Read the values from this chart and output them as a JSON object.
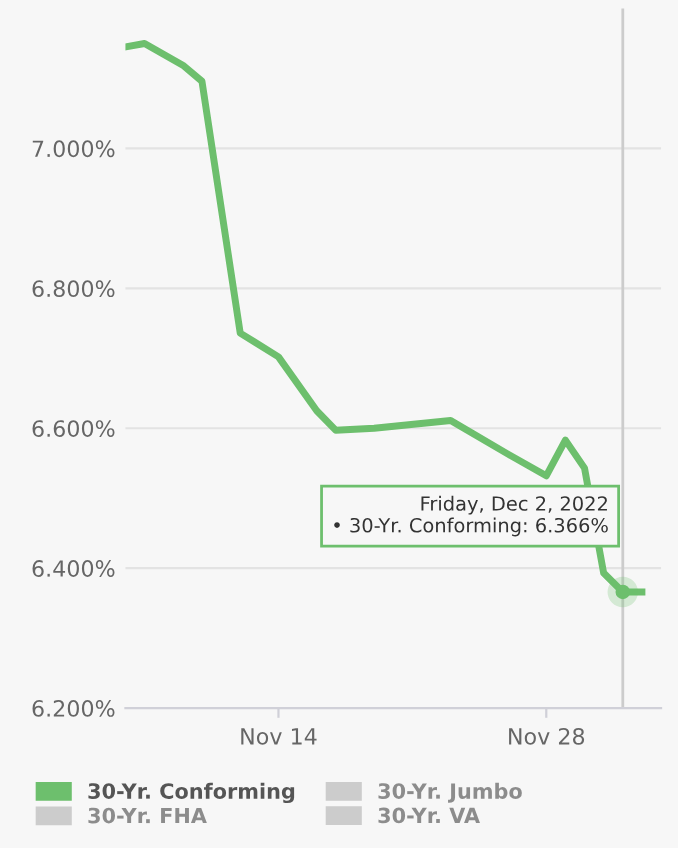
{
  "chart_data": {
    "type": "line",
    "x": [
      "2022-11-06",
      "2022-11-07",
      "2022-11-09",
      "2022-11-10",
      "2022-11-12",
      "2022-11-14",
      "2022-11-16",
      "2022-11-17",
      "2022-11-19",
      "2022-11-23",
      "2022-11-26",
      "2022-11-28",
      "2022-11-29",
      "2022-11-30",
      "2022-12-01",
      "2022-12-02",
      "2022-12-03"
    ],
    "series": [
      {
        "name": "30-Yr. Conforming",
        "color": "#6dbf6d",
        "values": [
          7.145,
          7.15,
          7.119,
          7.096,
          6.736,
          6.702,
          6.625,
          6.597,
          6.6,
          6.611,
          6.563,
          6.532,
          6.583,
          6.543,
          6.393,
          6.366,
          6.366
        ]
      },
      {
        "name": "30-Yr. Jumbo",
        "color": "#cccccc",
        "values": [
          null,
          null,
          null,
          null,
          null,
          null,
          null,
          null,
          null,
          null,
          null,
          null,
          null,
          null,
          null,
          null,
          null
        ]
      },
      {
        "name": "30-Yr. FHA",
        "color": "#cccccc",
        "values": [
          null,
          null,
          null,
          null,
          null,
          null,
          null,
          null,
          null,
          null,
          null,
          null,
          null,
          null,
          null,
          null,
          null
        ]
      },
      {
        "name": "30-Yr. VA",
        "color": "#cccccc",
        "values": [
          null,
          null,
          null,
          null,
          null,
          null,
          null,
          null,
          null,
          null,
          null,
          null,
          null,
          null,
          null,
          null,
          null
        ]
      }
    ],
    "xlim": [
      "2022-11-06",
      "2022-12-04"
    ],
    "xticks": [
      {
        "value": "2022-11-14",
        "label": "Nov 14"
      },
      {
        "value": "2022-11-28",
        "label": "Nov 28"
      }
    ],
    "ylim": [
      6.2,
      7.2
    ],
    "yticks": [
      {
        "value": 6.2,
        "label": "6.200%"
      },
      {
        "value": 6.4,
        "label": "6.400%"
      },
      {
        "value": 6.6,
        "label": "6.600%"
      },
      {
        "value": 6.8,
        "label": "6.800%"
      },
      {
        "value": 7.0,
        "label": "7.000%"
      }
    ],
    "grid": "y",
    "legend": "bottom",
    "marker": "none",
    "line_style": "solid",
    "ref_lines": [
      {
        "axis": "x",
        "value": "2022-12-02",
        "color": "#cccccc"
      }
    ],
    "annotations": [
      {
        "text": "Friday, Dec 2, 2022\n• 30-Yr. Conforming: 6.366%",
        "x": "2022-12-02",
        "y": 6.366
      }
    ]
  }
}
